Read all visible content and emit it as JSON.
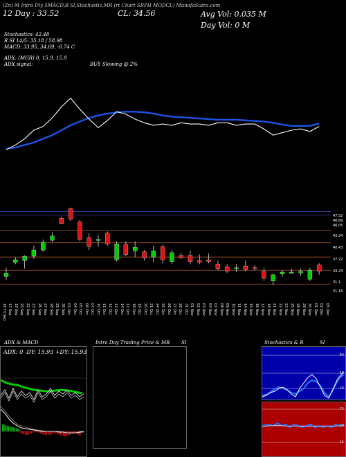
{
  "header": {
    "line1": "(Zn) M Intra Dly 5MACD,B Sl,Stochastic,MR (rt Chart SRPH MODCL) MunafaSutra.com",
    "date_label": "12 Day : 33.52",
    "close_label": "CL: 34.56",
    "avg_vol": "Avg Vol: 0.035 M",
    "day_vol": "Day Vol: 0  M"
  },
  "info": {
    "stoch": "Stochastics: 42.48",
    "rsi_line": "R  SI 14/5: 35.18 / 58.98",
    "macd_line": "MACD: 33.95,  34.69, -0.74  C",
    "adx_line": "ADX:                    (MGR) 0,  15.9,  15.9",
    "adx_signal": "ADX  signal:",
    "buy_signal": "BUY Slowing @ 2%"
  },
  "price_levels": [
    "47.52",
    "46.69",
    "46.05",
    "43.24",
    "40.43",
    "37.22",
    "34.23",
    "31.1",
    "31.16"
  ],
  "dates": [
    "16 Fri Sep",
    "17 Sep",
    "19 Sep",
    "20 Sep",
    "22 Sep",
    "23 Sep",
    "26 Sep",
    "27 Sep",
    "28 Sep",
    "29 Sep",
    "30 Sep",
    "03 Oct",
    "04 Oct",
    "05 Oct",
    "06 Oct",
    "07 Oct",
    "10 Oct",
    "11 Oct",
    "12 Oct",
    "13 Oct",
    "14 Oct",
    "17 Oct",
    "18 Oct",
    "19 Oct",
    "20 Oct",
    "21 Oct",
    "24 Oct",
    "25 Oct",
    "26 Oct",
    "27 Oct",
    "28 Oct",
    "31 Oct",
    "01 Nov",
    "02 Nov",
    "03 Nov",
    "04 Nov",
    "07 Nov",
    "08 Nov",
    "09 Nov",
    "10 Nov",
    "11 Nov",
    "14 Nov",
    "15 Nov",
    "16 Nov",
    "17 Nov",
    "18 Nov",
    "21 Nov",
    "22 Nov",
    "23 Nov",
    "25 Nov",
    "28 Nov",
    "29 Nov",
    "30 Nov",
    "01 Dec",
    "02 Dec",
    "05 Dec"
  ],
  "panels": {
    "adx_title": "ADX  & MACD",
    "adx_values": "ADX: 0  -DY: 15.93  +DY: 15.93",
    "intra_title": "Intra  Day Trading Price  & MR",
    "intra_si": "SI",
    "stoch_title": "Stochastics & R",
    "stoch_si": "SI",
    "stoch_ticks": [
      "80",
      "50",
      "20"
    ],
    "rsi_ticks": [
      "75",
      "50",
      "25"
    ]
  },
  "colors": {
    "bull": "#00cc00",
    "bear": "#dd1111",
    "ma": "#1a55e6",
    "price_line": "#ffffff",
    "level_line": "#b05a2a",
    "stoch_bg": "#0000aa",
    "rsi_bg": "#aa0000"
  },
  "chart_data": {
    "type": "candlestick",
    "ylim": [
      28,
      49
    ],
    "candles": [
      {
        "o": 32.8,
        "h": 34.8,
        "l": 32.0,
        "c": 33.6
      },
      {
        "o": 36.0,
        "h": 37.2,
        "l": 35.6,
        "c": 36.6
      },
      {
        "o": 36.4,
        "h": 37.6,
        "l": 34.6,
        "c": 37.4
      },
      {
        "o": 37.4,
        "h": 39.8,
        "l": 36.8,
        "c": 38.8
      },
      {
        "o": 38.8,
        "h": 41.2,
        "l": 38.4,
        "c": 40.6
      },
      {
        "o": 41.0,
        "h": 42.8,
        "l": 40.6,
        "c": 42.0
      },
      {
        "o": 46.0,
        "h": 46.4,
        "l": 44.6,
        "c": 44.8
      },
      {
        "o": 48.2,
        "h": 48.4,
        "l": 45.4,
        "c": 45.8
      },
      {
        "o": 45.2,
        "h": 45.6,
        "l": 40.8,
        "c": 41.2
      },
      {
        "o": 41.6,
        "h": 42.6,
        "l": 38.8,
        "c": 39.6
      },
      {
        "o": 41.0,
        "h": 42.2,
        "l": 39.6,
        "c": 41.2
      },
      {
        "o": 42.6,
        "h": 43.0,
        "l": 39.8,
        "c": 40.2
      },
      {
        "o": 36.6,
        "h": 40.8,
        "l": 36.2,
        "c": 40.2
      },
      {
        "o": 40.0,
        "h": 40.8,
        "l": 37.4,
        "c": 37.8
      },
      {
        "o": 38.6,
        "h": 40.8,
        "l": 37.2,
        "c": 39.4
      },
      {
        "o": 38.4,
        "h": 38.8,
        "l": 36.4,
        "c": 37.0
      },
      {
        "o": 37.2,
        "h": 39.8,
        "l": 36.0,
        "c": 38.6
      },
      {
        "o": 39.6,
        "h": 40.0,
        "l": 35.8,
        "c": 36.6
      },
      {
        "o": 36.2,
        "h": 38.8,
        "l": 35.6,
        "c": 38.2
      },
      {
        "o": 37.6,
        "h": 38.2,
        "l": 36.8,
        "c": 37.0
      },
      {
        "o": 37.6,
        "h": 38.6,
        "l": 35.6,
        "c": 36.2
      },
      {
        "o": 36.4,
        "h": 37.8,
        "l": 35.6,
        "c": 36.0
      },
      {
        "o": 36.6,
        "h": 38.0,
        "l": 35.8,
        "c": 36.2
      },
      {
        "o": 35.6,
        "h": 36.4,
        "l": 34.2,
        "c": 34.6
      },
      {
        "o": 35.0,
        "h": 35.6,
        "l": 33.6,
        "c": 34.0
      },
      {
        "o": 34.6,
        "h": 35.6,
        "l": 33.8,
        "c": 34.8
      },
      {
        "o": 35.2,
        "h": 36.4,
        "l": 34.0,
        "c": 34.4
      },
      {
        "o": 34.8,
        "h": 35.4,
        "l": 34.2,
        "c": 34.6
      },
      {
        "o": 34.0,
        "h": 34.8,
        "l": 31.8,
        "c": 32.4
      },
      {
        "o": 31.8,
        "h": 33.4,
        "l": 30.8,
        "c": 33.2
      },
      {
        "o": 33.4,
        "h": 34.2,
        "l": 32.8,
        "c": 33.8
      },
      {
        "o": 33.8,
        "h": 34.6,
        "l": 33.4,
        "c": 33.8
      },
      {
        "o": 33.6,
        "h": 34.6,
        "l": 33.0,
        "c": 34.0
      },
      {
        "o": 32.2,
        "h": 34.8,
        "l": 31.8,
        "c": 34.2
      },
      {
        "o": 35.4,
        "h": 35.8,
        "l": 33.2,
        "c": 34.0
      }
    ],
    "ma_line": [
      26.6,
      26.8,
      27.2,
      27.6,
      28.2,
      28.8,
      29.6,
      30.4,
      31.0,
      31.6,
      32.0,
      32.3,
      32.5,
      32.6,
      32.6,
      32.5,
      32.3,
      32.0,
      31.8,
      31.7,
      31.6,
      31.5,
      31.4,
      31.3,
      31.3,
      31.3,
      31.2,
      31.1,
      31.0,
      30.8,
      30.5,
      30.3,
      30.3,
      30.3,
      30.7
    ],
    "price_line": [
      26.4,
      27.2,
      28.2,
      29.6,
      30.2,
      31.6,
      33.4,
      34.8,
      33.0,
      31.4,
      30.0,
      31.2,
      32.6,
      32.2,
      31.4,
      30.8,
      30.4,
      30.6,
      30.4,
      30.8,
      30.6,
      30.6,
      30.4,
      30.8,
      30.8,
      30.4,
      30.6,
      30.6,
      29.8,
      28.8,
      29.2,
      29.6,
      29.8,
      29.4,
      30.2
    ]
  }
}
